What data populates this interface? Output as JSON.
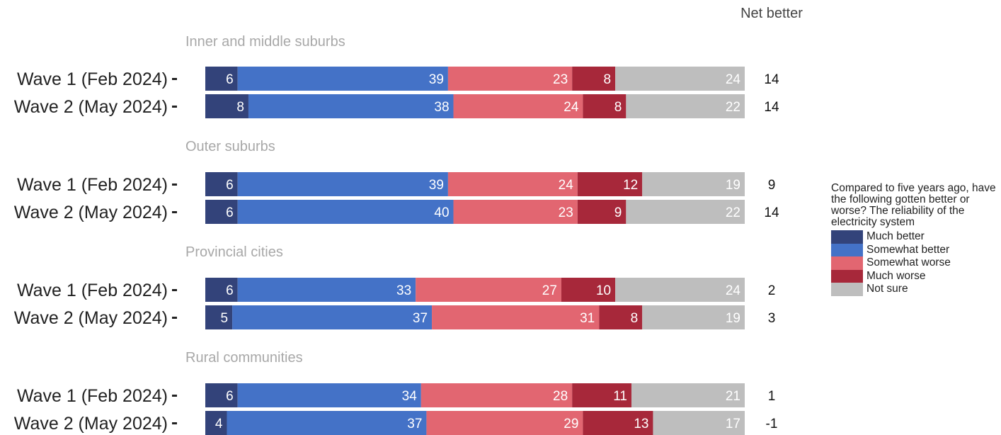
{
  "chart_data": {
    "type": "bar",
    "orientation": "horizontal",
    "stacked": true,
    "net_header": "Net better",
    "legend": {
      "title": "Compared to five years ago, have the following gotten better or worse? The reliability of the electricity system",
      "placement": "right"
    },
    "series": [
      {
        "name": "Much better",
        "color": "#33437a"
      },
      {
        "name": "Somewhat better",
        "color": "#4472c7"
      },
      {
        "name": "Somewhat worse",
        "color": "#e26671"
      },
      {
        "name": "Much worse",
        "color": "#a7283a"
      },
      {
        "name": "Not sure",
        "color": "#bebebe"
      }
    ],
    "groups": [
      {
        "title": "Inner and middle suburbs",
        "rows": [
          {
            "label": "Wave 1 (Feb 2024)",
            "values": [
              6,
              39,
              23,
              8,
              24
            ],
            "net": "14"
          },
          {
            "label": "Wave 2 (May 2024)",
            "values": [
              8,
              38,
              24,
              8,
              22
            ],
            "net": "14"
          }
        ]
      },
      {
        "title": "Outer suburbs",
        "rows": [
          {
            "label": "Wave 1 (Feb 2024)",
            "values": [
              6,
              39,
              24,
              12,
              19
            ],
            "net": "9"
          },
          {
            "label": "Wave 2 (May 2024)",
            "values": [
              6,
              40,
              23,
              9,
              22
            ],
            "net": "14"
          }
        ]
      },
      {
        "title": "Provincial cities",
        "rows": [
          {
            "label": "Wave 1 (Feb 2024)",
            "values": [
              6,
              33,
              27,
              10,
              24
            ],
            "net": "2"
          },
          {
            "label": "Wave 2 (May 2024)",
            "values": [
              5,
              37,
              31,
              8,
              19
            ],
            "net": "3"
          }
        ]
      },
      {
        "title": "Rural communities",
        "rows": [
          {
            "label": "Wave 1 (Feb 2024)",
            "values": [
              6,
              34,
              28,
              11,
              21
            ],
            "net": "1"
          },
          {
            "label": "Wave 2 (May 2024)",
            "values": [
              4,
              37,
              29,
              13,
              17
            ],
            "net": "-1"
          }
        ]
      }
    ]
  }
}
